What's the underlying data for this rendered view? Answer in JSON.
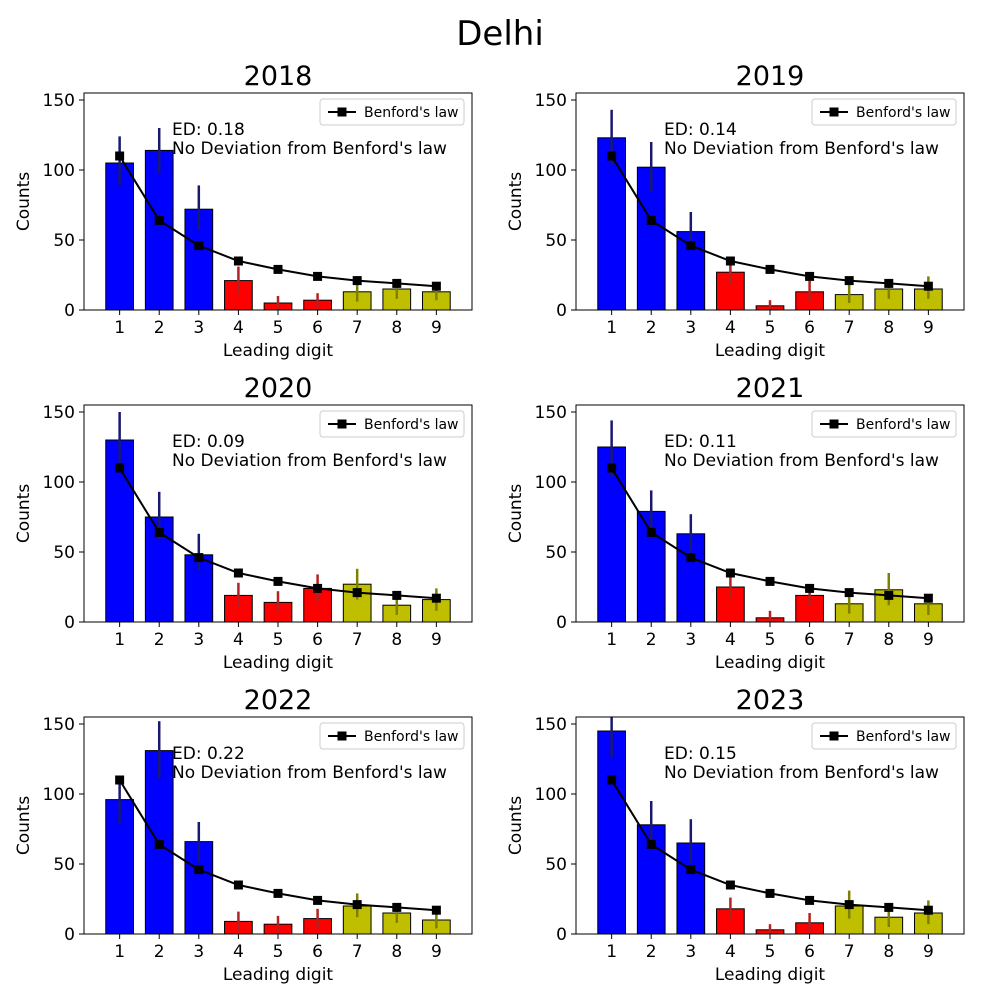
{
  "figure_title": "Delhi",
  "legend_label": "Benford's law",
  "xlabel": "Leading digit",
  "ylabel": "Counts",
  "colors": {
    "digits_1_3": "#0000ff",
    "digits_4_6": "#ff0000",
    "digits_7_9": "#bfbf00",
    "err_1_3": "#191970",
    "err_4_6": "#b22222",
    "err_7_9": "#808000",
    "benford_line": "#000000"
  },
  "chart_data": [
    {
      "type": "bar",
      "title": "2018",
      "categories": [
        "1",
        "2",
        "3",
        "4",
        "5",
        "6",
        "7",
        "8",
        "9"
      ],
      "values": [
        105,
        114,
        72,
        21,
        5,
        7,
        13,
        15,
        13
      ],
      "error_low": [
        89,
        98,
        57,
        11,
        0,
        2,
        6,
        8,
        7
      ],
      "error_high": [
        124,
        130,
        89,
        31,
        10,
        12,
        20,
        22,
        20
      ],
      "benford": [
        110,
        64,
        46,
        35,
        29,
        24,
        21,
        19,
        17
      ],
      "annotation_ed": "ED: 0.18",
      "annotation_status": "No Deviation from Benford's law",
      "ylim": [
        0,
        155
      ],
      "yticks": [
        0,
        50,
        100,
        150
      ]
    },
    {
      "type": "bar",
      "title": "2019",
      "categories": [
        "1",
        "2",
        "3",
        "4",
        "5",
        "6",
        "7",
        "8",
        "9"
      ],
      "values": [
        123,
        102,
        56,
        27,
        3,
        13,
        11,
        15,
        15
      ],
      "error_low": [
        104,
        85,
        43,
        18,
        0,
        6,
        5,
        8,
        8
      ],
      "error_high": [
        143,
        120,
        70,
        37,
        7,
        21,
        18,
        22,
        24
      ],
      "benford": [
        110,
        64,
        46,
        35,
        29,
        24,
        21,
        19,
        17
      ],
      "annotation_ed": "ED: 0.14",
      "annotation_status": "No Deviation from Benford's law",
      "ylim": [
        0,
        155
      ],
      "yticks": [
        0,
        50,
        100,
        150
      ]
    },
    {
      "type": "bar",
      "title": "2020",
      "categories": [
        "1",
        "2",
        "3",
        "4",
        "5",
        "6",
        "7",
        "8",
        "9"
      ],
      "values": [
        130,
        75,
        48,
        19,
        14,
        24,
        27,
        12,
        16
      ],
      "error_low": [
        110,
        59,
        37,
        11,
        7,
        15,
        16,
        5,
        8
      ],
      "error_high": [
        150,
        93,
        63,
        28,
        22,
        34,
        38,
        18,
        24
      ],
      "benford": [
        110,
        64,
        46,
        35,
        29,
        24,
        21,
        19,
        17
      ],
      "annotation_ed": "ED: 0.09",
      "annotation_status": "No Deviation from Benford's law",
      "ylim": [
        0,
        155
      ],
      "yticks": [
        0,
        50,
        100,
        150
      ]
    },
    {
      "type": "bar",
      "title": "2021",
      "categories": [
        "1",
        "2",
        "3",
        "4",
        "5",
        "6",
        "7",
        "8",
        "9"
      ],
      "values": [
        125,
        79,
        63,
        25,
        3,
        19,
        13,
        23,
        13
      ],
      "error_low": [
        104,
        64,
        49,
        17,
        0,
        12,
        6,
        12,
        5
      ],
      "error_high": [
        144,
        94,
        77,
        33,
        8,
        26,
        19,
        35,
        20
      ],
      "benford": [
        110,
        64,
        46,
        35,
        29,
        24,
        21,
        19,
        17
      ],
      "annotation_ed": "ED: 0.11",
      "annotation_status": "No Deviation from Benford's law",
      "ylim": [
        0,
        155
      ],
      "yticks": [
        0,
        50,
        100,
        150
      ]
    },
    {
      "type": "bar",
      "title": "2022",
      "categories": [
        "1",
        "2",
        "3",
        "4",
        "5",
        "6",
        "7",
        "8",
        "9"
      ],
      "values": [
        96,
        131,
        66,
        9,
        7,
        11,
        20,
        15,
        10
      ],
      "error_low": [
        79,
        111,
        51,
        2,
        1,
        4,
        12,
        8,
        4
      ],
      "error_high": [
        113,
        152,
        80,
        16,
        13,
        18,
        29,
        22,
        16
      ],
      "benford": [
        110,
        64,
        46,
        35,
        29,
        24,
        21,
        19,
        17
      ],
      "annotation_ed": "ED: 0.22",
      "annotation_status": "No Deviation from Benford's law",
      "ylim": [
        0,
        155
      ],
      "yticks": [
        0,
        50,
        100,
        150
      ]
    },
    {
      "type": "bar",
      "title": "2023",
      "categories": [
        "1",
        "2",
        "3",
        "4",
        "5",
        "6",
        "7",
        "8",
        "9"
      ],
      "values": [
        145,
        78,
        65,
        18,
        3,
        8,
        20,
        12,
        15
      ],
      "error_low": [
        126,
        62,
        50,
        10,
        0,
        2,
        11,
        5,
        7
      ],
      "error_high": [
        165,
        95,
        82,
        26,
        7,
        15,
        31,
        18,
        24
      ],
      "benford": [
        110,
        64,
        46,
        35,
        29,
        24,
        21,
        19,
        17
      ],
      "annotation_ed": "ED: 0.15",
      "annotation_status": "No Deviation from Benford's law",
      "ylim": [
        0,
        155
      ],
      "yticks": [
        0,
        50,
        100,
        150
      ]
    }
  ]
}
